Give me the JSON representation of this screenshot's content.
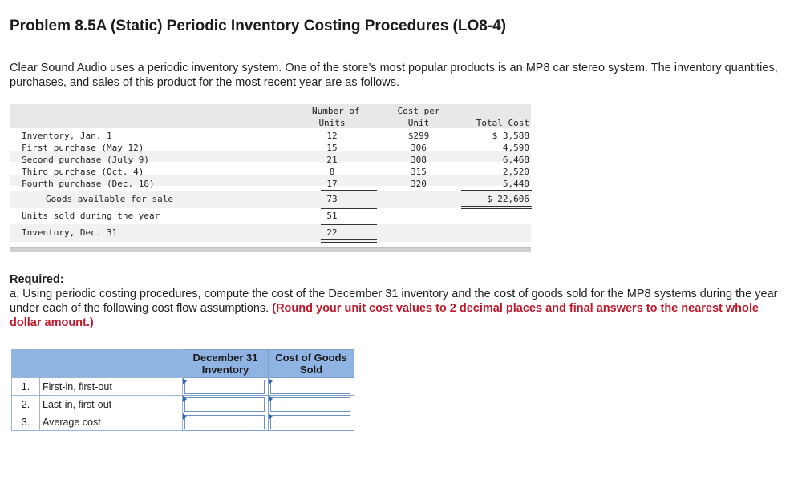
{
  "title": "Problem 8.5A (Static) Periodic Inventory Costing Procedures (LO8-4)",
  "intro": "Clear Sound Audio uses a periodic inventory system. One of the store’s most popular products is an MP8 car stereo system. The inventory quantities, purchases, and sales of this product for the most recent year are as follows.",
  "inventory_table": {
    "headers": {
      "units_line1": "Number of",
      "units_line2": "Units",
      "cost_line1": "Cost per",
      "cost_line2": "Unit",
      "total": "Total Cost"
    },
    "rows": [
      {
        "label": "Inventory, Jan. 1",
        "units": "12",
        "cost": "$299",
        "total": "$ 3,588"
      },
      {
        "label": "First purchase (May 12)",
        "units": "15",
        "cost": "306",
        "total": "4,590"
      },
      {
        "label": "Second purchase (July 9)",
        "units": "21",
        "cost": "308",
        "total": "6,468"
      },
      {
        "label": "Third purchase (Oct. 4)",
        "units": "8",
        "cost": "315",
        "total": "2,520"
      },
      {
        "label": "Fourth purchase (Dec. 18)",
        "units": "17",
        "cost": "320",
        "total": "5,440"
      }
    ],
    "available": {
      "label": "Goods available for sale",
      "units": "73",
      "total": "$ 22,606"
    },
    "sold": {
      "label": "Units sold during the year",
      "units": "51"
    },
    "ending": {
      "label": "Inventory, Dec. 31",
      "units": "22"
    }
  },
  "required": {
    "heading": "Required:",
    "part_a": "a. Using periodic costing procedures, compute the cost of the December 31 inventory and the cost of goods sold for the MP8 systems during the year under each of the following cost flow assumptions.",
    "note": "(Round your unit cost values to 2 decimal places and final answers to the nearest whole dollar amount.)"
  },
  "answer_table": {
    "col_inventory_line1": "December 31",
    "col_inventory_line2": "Inventory",
    "col_cogs_line1": "Cost of Goods",
    "col_cogs_line2": "Sold",
    "rows": [
      {
        "num": "1.",
        "method": "First-in, first-out",
        "inventory": "",
        "cogs": ""
      },
      {
        "num": "2.",
        "method": "Last-in, first-out",
        "inventory": "",
        "cogs": ""
      },
      {
        "num": "3.",
        "method": "Average cost",
        "inventory": "",
        "cogs": ""
      }
    ]
  },
  "colors": {
    "header_fill": "#8fb4e3",
    "note_red": "#c0182a",
    "input_flag": "#2f67b1"
  }
}
